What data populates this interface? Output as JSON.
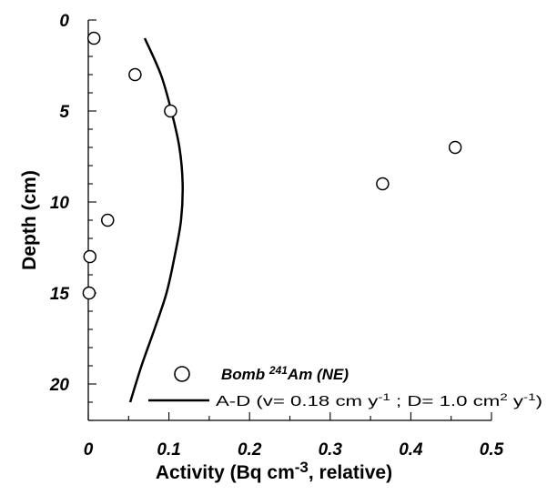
{
  "chart_data": {
    "type": "scatter",
    "xlabel": "Activity (Bq cm-3, relative)",
    "xlabel_parts": {
      "pre": "Activity (Bq cm",
      "sup": "-3",
      "post": ", relative)"
    },
    "ylabel": "Depth (cm)",
    "xlim": [
      0,
      0.5
    ],
    "ylim": [
      0,
      22
    ],
    "y_inverted": true,
    "x_ticks": [
      "0",
      "0.1",
      "0.2",
      "0.3",
      "0.4",
      "0.5"
    ],
    "y_ticks": [
      "0",
      "5",
      "10",
      "15",
      "20"
    ],
    "legend_position": "bottom-right",
    "series": [
      {
        "name": "Bomb 241Am (NE)",
        "name_parts": {
          "pre": "Bomb ",
          "sup": "241",
          "post": "Am (NE)"
        },
        "kind": "scatter",
        "marker": "open-circle",
        "points": [
          {
            "x": 0.007,
            "y": 1
          },
          {
            "x": 0.058,
            "y": 3
          },
          {
            "x": 0.102,
            "y": 5
          },
          {
            "x": 0.455,
            "y": 7
          },
          {
            "x": 0.365,
            "y": 9
          },
          {
            "x": 0.024,
            "y": 11
          },
          {
            "x": 0.002,
            "y": 13
          },
          {
            "x": 0.001,
            "y": 15
          }
        ]
      },
      {
        "name": "A-D (v= 0.18 cm y-1 ; D= 1.0 cm2 y-1)",
        "name_parts": [
          {
            "t": "A-D (v= 0.18 cm y"
          },
          {
            "sup": "-1"
          },
          {
            "t": " ; D= 1.0 cm"
          },
          {
            "sup": "2"
          },
          {
            "t": " y"
          },
          {
            "sup": "-1"
          },
          {
            "t": ")"
          }
        ],
        "kind": "line",
        "points": [
          {
            "x": 0.07,
            "y": 1
          },
          {
            "x": 0.09,
            "y": 3
          },
          {
            "x": 0.103,
            "y": 5
          },
          {
            "x": 0.113,
            "y": 7
          },
          {
            "x": 0.117,
            "y": 9
          },
          {
            "x": 0.115,
            "y": 11
          },
          {
            "x": 0.107,
            "y": 13
          },
          {
            "x": 0.097,
            "y": 15
          },
          {
            "x": 0.082,
            "y": 17
          },
          {
            "x": 0.066,
            "y": 19
          },
          {
            "x": 0.052,
            "y": 21
          }
        ]
      }
    ]
  }
}
